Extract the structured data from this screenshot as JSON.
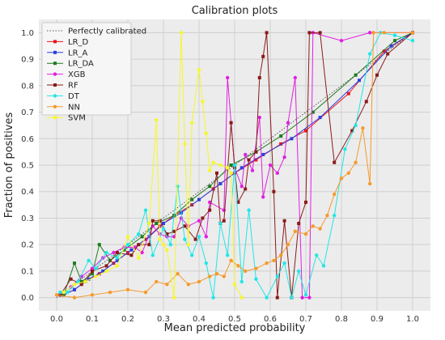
{
  "chart_data": {
    "type": "line",
    "title": "Calibration plots",
    "xlabel": "Mean predicted probability",
    "ylabel": "Fraction of positives",
    "xlim": [
      -0.05,
      1.05
    ],
    "ylim": [
      -0.05,
      1.05
    ],
    "xticks": [
      "0.0",
      "0.1",
      "0.2",
      "0.3",
      "0.4",
      "0.5",
      "0.6",
      "0.7",
      "0.8",
      "0.9",
      "1.0"
    ],
    "yticks": [
      "0.0",
      "0.1",
      "0.2",
      "0.3",
      "0.4",
      "0.5",
      "0.6",
      "0.7",
      "0.8",
      "0.9",
      "1.0"
    ],
    "grid": true,
    "legend_position": "top-left",
    "reference": {
      "name": "Perfectly calibrated",
      "color": "#555555",
      "points": [
        [
          0,
          0
        ],
        [
          1,
          1
        ]
      ]
    },
    "series": [
      {
        "name": "LR_D",
        "color": "#e8141c",
        "marker": "square",
        "points": [
          [
            0.02,
            0.01
          ],
          [
            0.05,
            0.03
          ],
          [
            0.08,
            0.06
          ],
          [
            0.12,
            0.09
          ],
          [
            0.16,
            0.13
          ],
          [
            0.2,
            0.17
          ],
          [
            0.25,
            0.22
          ],
          [
            0.29,
            0.27
          ],
          [
            0.33,
            0.31
          ],
          [
            0.38,
            0.35
          ],
          [
            0.44,
            0.41
          ],
          [
            0.5,
            0.47
          ],
          [
            0.56,
            0.52
          ],
          [
            0.63,
            0.58
          ],
          [
            0.7,
            0.63
          ],
          [
            0.82,
            0.77
          ],
          [
            0.92,
            0.93
          ],
          [
            1.0,
            1.0
          ]
        ]
      },
      {
        "name": "LR_A",
        "color": "#2a3fe0",
        "marker": "square",
        "points": [
          [
            0.02,
            0.01
          ],
          [
            0.05,
            0.03
          ],
          [
            0.09,
            0.07
          ],
          [
            0.13,
            0.1
          ],
          [
            0.17,
            0.14
          ],
          [
            0.21,
            0.18
          ],
          [
            0.26,
            0.23
          ],
          [
            0.3,
            0.28
          ],
          [
            0.35,
            0.32
          ],
          [
            0.4,
            0.37
          ],
          [
            0.46,
            0.43
          ],
          [
            0.52,
            0.49
          ],
          [
            0.58,
            0.54
          ],
          [
            0.66,
            0.6
          ],
          [
            0.74,
            0.68
          ],
          [
            0.85,
            0.82
          ],
          [
            0.94,
            0.95
          ],
          [
            1.0,
            1.0
          ]
        ]
      },
      {
        "name": "LR_DA",
        "color": "#1d7a1d",
        "marker": "square",
        "points": [
          [
            0.02,
            0.01
          ],
          [
            0.05,
            0.13
          ],
          [
            0.07,
            0.06
          ],
          [
            0.1,
            0.09
          ],
          [
            0.12,
            0.2
          ],
          [
            0.15,
            0.14
          ],
          [
            0.19,
            0.18
          ],
          [
            0.24,
            0.23
          ],
          [
            0.28,
            0.28
          ],
          [
            0.33,
            0.31
          ],
          [
            0.38,
            0.37
          ],
          [
            0.43,
            0.42
          ],
          [
            0.49,
            0.5
          ],
          [
            0.56,
            0.55
          ],
          [
            0.63,
            0.61
          ],
          [
            0.72,
            0.7
          ],
          [
            0.84,
            0.84
          ],
          [
            0.95,
            0.97
          ],
          [
            1.0,
            1.0
          ]
        ]
      },
      {
        "name": "XGB",
        "color": "#e020e0",
        "marker": "circle",
        "points": [
          [
            0.01,
            0.01
          ],
          [
            0.04,
            0.04
          ],
          [
            0.07,
            0.08
          ],
          [
            0.1,
            0.11
          ],
          [
            0.13,
            0.15
          ],
          [
            0.16,
            0.17
          ],
          [
            0.19,
            0.19
          ],
          [
            0.22,
            0.19
          ],
          [
            0.24,
            0.17
          ],
          [
            0.27,
            0.27
          ],
          [
            0.29,
            0.24
          ],
          [
            0.31,
            0.23
          ],
          [
            0.33,
            0.23
          ],
          [
            0.35,
            0.3
          ],
          [
            0.37,
            0.27
          ],
          [
            0.4,
            0.29
          ],
          [
            0.42,
            0.23
          ],
          [
            0.43,
            0.36
          ],
          [
            0.47,
            0.33
          ],
          [
            0.48,
            0.83
          ],
          [
            0.5,
            0.49
          ],
          [
            0.52,
            0.42
          ],
          [
            0.53,
            0.54
          ],
          [
            0.55,
            0.48
          ],
          [
            0.57,
            0.68
          ],
          [
            0.58,
            0.38
          ],
          [
            0.6,
            0.5
          ],
          [
            0.62,
            0.47
          ],
          [
            0.64,
            0.53
          ],
          [
            0.65,
            0.66
          ],
          [
            0.67,
            0.83
          ],
          [
            0.69,
            0.0
          ],
          [
            0.71,
            0.0
          ],
          [
            0.72,
            1.0
          ],
          [
            0.8,
            0.97
          ],
          [
            0.88,
            1.0
          ],
          [
            1.0,
            1.0
          ]
        ]
      },
      {
        "name": "RF",
        "color": "#8b1a1a",
        "marker": "square",
        "points": [
          [
            0.01,
            0.01
          ],
          [
            0.04,
            0.07
          ],
          [
            0.07,
            0.05
          ],
          [
            0.1,
            0.1
          ],
          [
            0.14,
            0.12
          ],
          [
            0.17,
            0.17
          ],
          [
            0.21,
            0.16
          ],
          [
            0.23,
            0.2
          ],
          [
            0.26,
            0.2
          ],
          [
            0.27,
            0.29
          ],
          [
            0.29,
            0.29
          ],
          [
            0.31,
            0.24
          ],
          [
            0.33,
            0.25
          ],
          [
            0.36,
            0.27
          ],
          [
            0.39,
            0.22
          ],
          [
            0.41,
            0.3
          ],
          [
            0.43,
            0.33
          ],
          [
            0.45,
            0.47
          ],
          [
            0.46,
            0.28
          ],
          [
            0.47,
            0.29
          ],
          [
            0.49,
            0.66
          ],
          [
            0.5,
            0.49
          ],
          [
            0.51,
            0.36
          ],
          [
            0.53,
            0.41
          ],
          [
            0.54,
            0.52
          ],
          [
            0.56,
            0.55
          ],
          [
            0.57,
            0.83
          ],
          [
            0.58,
            0.91
          ],
          [
            0.59,
            1.0
          ],
          [
            0.61,
            0.4
          ],
          [
            0.62,
            0.0
          ],
          [
            0.64,
            0.29
          ],
          [
            0.66,
            0.0
          ],
          [
            0.68,
            0.28
          ],
          [
            0.7,
            0.36
          ],
          [
            0.71,
            1.0
          ],
          [
            0.74,
            1.0
          ],
          [
            0.78,
            0.51
          ],
          [
            0.83,
            0.63
          ],
          [
            0.87,
            0.74
          ],
          [
            0.9,
            0.84
          ],
          [
            0.93,
            0.92
          ],
          [
            1.0,
            1.0
          ]
        ]
      },
      {
        "name": "DT",
        "color": "#22e6e6",
        "marker": "circle",
        "points": [
          [
            0.01,
            0.02
          ],
          [
            0.03,
            0.02
          ],
          [
            0.06,
            0.06
          ],
          [
            0.09,
            0.14
          ],
          [
            0.11,
            0.11
          ],
          [
            0.14,
            0.17
          ],
          [
            0.17,
            0.15
          ],
          [
            0.2,
            0.2
          ],
          [
            0.23,
            0.24
          ],
          [
            0.25,
            0.33
          ],
          [
            0.27,
            0.16
          ],
          [
            0.3,
            0.26
          ],
          [
            0.32,
            0.2
          ],
          [
            0.34,
            0.42
          ],
          [
            0.36,
            0.22
          ],
          [
            0.38,
            0.16
          ],
          [
            0.4,
            0.23
          ],
          [
            0.42,
            0.13
          ],
          [
            0.44,
            0.0
          ],
          [
            0.46,
            0.28
          ],
          [
            0.48,
            0.16
          ],
          [
            0.5,
            0.5
          ],
          [
            0.52,
            0.06
          ],
          [
            0.54,
            0.33
          ],
          [
            0.56,
            0.07
          ],
          [
            0.59,
            0.0
          ],
          [
            0.62,
            0.08
          ],
          [
            0.64,
            0.13
          ],
          [
            0.66,
            0.0
          ],
          [
            0.68,
            0.1
          ],
          [
            0.7,
            0.01
          ],
          [
            0.73,
            0.16
          ],
          [
            0.75,
            0.12
          ],
          [
            0.78,
            0.31
          ],
          [
            0.81,
            0.56
          ],
          [
            0.84,
            0.65
          ],
          [
            0.88,
            0.92
          ],
          [
            0.91,
            1.0
          ],
          [
            0.95,
            0.99
          ],
          [
            1.0,
            0.97
          ]
        ]
      },
      {
        "name": "NN",
        "color": "#f59a2a",
        "marker": "circle",
        "points": [
          [
            0.0,
            0.01
          ],
          [
            0.05,
            0.0
          ],
          [
            0.1,
            0.01
          ],
          [
            0.15,
            0.02
          ],
          [
            0.2,
            0.03
          ],
          [
            0.25,
            0.02
          ],
          [
            0.28,
            0.06
          ],
          [
            0.31,
            0.05
          ],
          [
            0.34,
            0.09
          ],
          [
            0.37,
            0.05
          ],
          [
            0.4,
            0.06
          ],
          [
            0.43,
            0.08
          ],
          [
            0.45,
            0.09
          ],
          [
            0.47,
            0.08
          ],
          [
            0.49,
            0.14
          ],
          [
            0.51,
            0.12
          ],
          [
            0.53,
            0.1
          ],
          [
            0.56,
            0.11
          ],
          [
            0.59,
            0.13
          ],
          [
            0.61,
            0.14
          ],
          [
            0.63,
            0.16
          ],
          [
            0.65,
            0.2
          ],
          [
            0.67,
            0.25
          ],
          [
            0.7,
            0.24
          ],
          [
            0.72,
            0.27
          ],
          [
            0.74,
            0.26
          ],
          [
            0.76,
            0.31
          ],
          [
            0.78,
            0.39
          ],
          [
            0.8,
            0.45
          ],
          [
            0.82,
            0.47
          ],
          [
            0.84,
            0.51
          ],
          [
            0.86,
            0.64
          ],
          [
            0.88,
            0.43
          ],
          [
            0.89,
            1.0
          ],
          [
            0.92,
            1.0
          ],
          [
            1.0,
            1.0
          ]
        ]
      },
      {
        "name": "SVM",
        "color": "#f7f72a",
        "marker": "circle",
        "points": [
          [
            0.02,
            0.02
          ],
          [
            0.05,
            0.05
          ],
          [
            0.08,
            0.06
          ],
          [
            0.11,
            0.08
          ],
          [
            0.14,
            0.1
          ],
          [
            0.17,
            0.12
          ],
          [
            0.2,
            0.23
          ],
          [
            0.23,
            0.15
          ],
          [
            0.26,
            0.28
          ],
          [
            0.28,
            0.67
          ],
          [
            0.29,
            0.22
          ],
          [
            0.3,
            0.2
          ],
          [
            0.31,
            0.18
          ],
          [
            0.33,
            0.0
          ],
          [
            0.35,
            1.0
          ],
          [
            0.36,
            0.58
          ],
          [
            0.37,
            0.2
          ],
          [
            0.38,
            0.66
          ],
          [
            0.4,
            0.86
          ],
          [
            0.41,
            0.74
          ],
          [
            0.42,
            0.62
          ],
          [
            0.43,
            0.48
          ],
          [
            0.44,
            0.51
          ],
          [
            0.46,
            0.5
          ],
          [
            0.48,
            0.49
          ],
          [
            0.49,
            0.47
          ],
          [
            0.5,
            0.05
          ],
          [
            0.52,
            0.0
          ]
        ]
      }
    ]
  }
}
